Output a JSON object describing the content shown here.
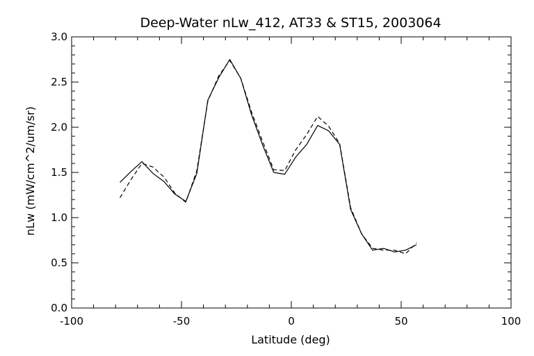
{
  "chart_data": {
    "type": "line",
    "title": "Deep-Water nLw_412, AT33 & ST15, 2003064",
    "xlabel": "Latitude (deg)",
    "ylabel": "nLw (mW/cm^2/um/sr)",
    "xlim": [
      -100,
      100
    ],
    "ylim": [
      0.0,
      3.0
    ],
    "xticks": [
      "-100",
      "-50",
      "0",
      "50",
      "100"
    ],
    "yticks": [
      "0.0",
      "0.5",
      "1.0",
      "1.5",
      "2.0",
      "2.5",
      "3.0"
    ],
    "grid": false,
    "legend": "none",
    "series": [
      {
        "style": "solid",
        "color": "#000000",
        "x": [
          -78,
          -73,
          -68,
          -63,
          -58,
          -53,
          -48,
          -43,
          -38,
          -33,
          -28,
          -23,
          -18,
          -13,
          -8,
          -3,
          2,
          7,
          12,
          17,
          22,
          27,
          32,
          37,
          42,
          47,
          52,
          57
        ],
        "y": [
          1.39,
          1.51,
          1.62,
          1.49,
          1.4,
          1.26,
          1.18,
          1.49,
          2.3,
          2.55,
          2.75,
          2.54,
          2.13,
          1.8,
          1.5,
          1.48,
          1.67,
          1.81,
          2.02,
          1.96,
          1.81,
          1.09,
          0.82,
          0.64,
          0.66,
          0.62,
          0.64,
          0.7
        ]
      },
      {
        "style": "dashed",
        "color": "#000000",
        "x": [
          -78,
          -73,
          -68,
          -63,
          -58,
          -53,
          -48,
          -43,
          -38,
          -33,
          -28,
          -23,
          -18,
          -13,
          -8,
          -3,
          2,
          7,
          12,
          17,
          22,
          27,
          32,
          37,
          42,
          47,
          52,
          57
        ],
        "y": [
          1.22,
          1.42,
          1.6,
          1.56,
          1.45,
          1.27,
          1.17,
          1.52,
          2.29,
          2.57,
          2.74,
          2.54,
          2.16,
          1.84,
          1.53,
          1.52,
          1.75,
          1.92,
          2.12,
          2.01,
          1.82,
          1.11,
          0.82,
          0.66,
          0.64,
          0.64,
          0.6,
          0.72
        ]
      }
    ]
  }
}
